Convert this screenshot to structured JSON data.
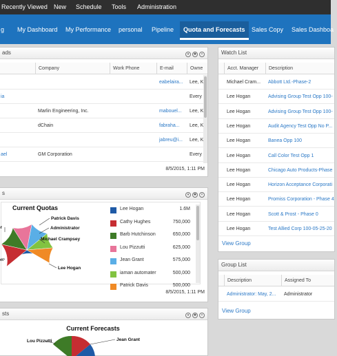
{
  "topnav": {
    "items": [
      "Recently Viewed",
      "New",
      "Schedule",
      "Tools",
      "Administration"
    ]
  },
  "tabs": {
    "items": [
      "g",
      "My Dashboard",
      "My Performance",
      "personal",
      "Pipeline",
      "Quota and Forecasts",
      "Sales Copy",
      "Sales Dashboa"
    ],
    "active": 5
  },
  "leads_panel": {
    "title": "ads",
    "headers": [
      "Company",
      "Work Phone",
      "E-mail",
      "Owne"
    ],
    "rows": [
      {
        "name": "",
        "company": "",
        "phone": "",
        "email": "eabelaira...",
        "owner": "Lee, K"
      },
      {
        "name": "ia",
        "company": "",
        "phone": "",
        "email": "",
        "owner": "Every"
      },
      {
        "name": "",
        "company": "Marlin Engineering, Inc.",
        "phone": "",
        "email": "mabouel...",
        "owner": "Lee, K"
      },
      {
        "name": "",
        "company": "dChain",
        "phone": "",
        "email": "fabraha...",
        "owner": "Lee, K"
      },
      {
        "name": "",
        "company": "",
        "phone": "",
        "email": "jabreu@i...",
        "owner": "Lee, K"
      },
      {
        "name": "ael",
        "company": "GM Corporation",
        "phone": "",
        "email": "",
        "owner": "Every"
      }
    ],
    "footer": "8/5/2015, 1:11 PM"
  },
  "quotas_panel": {
    "title": "s",
    "footer": "8/5/2015, 1:11 PM",
    "chart_data": {
      "type": "pie",
      "title": "Current Quotas",
      "slices": [
        {
          "name": "Lee Hogan",
          "value": 1600000,
          "value_label": "1.6M",
          "color": "#1f5aa6"
        },
        {
          "name": "Cathy Hughes",
          "value": 750000,
          "value_label": "750,000",
          "color": "#c62d32"
        },
        {
          "name": "Barb Hutchinson",
          "value": 650000,
          "value_label": "650,000",
          "color": "#3e7b27"
        },
        {
          "name": "Lou Pizzutti",
          "value": 625000,
          "value_label": "625,000",
          "color": "#e8759a"
        },
        {
          "name": "Jean Grant",
          "value": 575000,
          "value_label": "575,000",
          "color": "#5aaee6"
        },
        {
          "name": "iaman automater",
          "value": 500000,
          "value_label": "500,000",
          "color": "#82c341"
        },
        {
          "name": "Patrick Davis",
          "value": 500000,
          "value_label": "500,000",
          "color": "#f08a25"
        }
      ],
      "callouts": [
        "Patrick Davis",
        "Administrator",
        "Michael Crampsey",
        "Lee Hogan",
        "er",
        "on"
      ]
    }
  },
  "forecasts_panel": {
    "title": "sts",
    "chart_data": {
      "type": "pie",
      "title": "Current Forecasts",
      "callouts": [
        "Lou Pizzutti",
        "Jean Grant"
      ]
    }
  },
  "watch_panel": {
    "title": "Watch List",
    "headers": [
      "Acct. Manager",
      "Description"
    ],
    "rows": [
      {
        "manager": "Michael Cram...",
        "desc": "Abbott Ltd.-Phase-2"
      },
      {
        "manager": "Lee Hogan",
        "desc": "Advising Group Test Opp 100-"
      },
      {
        "manager": "Lee Hogan",
        "desc": "Advising Group Test Opp 100-"
      },
      {
        "manager": "Lee Hogan",
        "desc": "Audit Agency Test Opp No P..."
      },
      {
        "manager": "Lee Hogan",
        "desc": "Banea Opp 100"
      },
      {
        "manager": "Lee Hogan",
        "desc": "Call Color Test Opp 1"
      },
      {
        "manager": "Lee Hogan",
        "desc": "Chicago Auto Products-Phase"
      },
      {
        "manager": "Lee Hogan",
        "desc": "Horizon Acceptance Corporati"
      },
      {
        "manager": "Lee Hogan",
        "desc": "Promiss Corporation - Phase 4"
      },
      {
        "manager": "Lee Hogan",
        "desc": "Scott & Prost - Phase 0"
      },
      {
        "manager": "Lee Hogan",
        "desc": "Test Allied Corp 100-05-25-20"
      }
    ],
    "view_link": "View Group"
  },
  "group_panel": {
    "title": "Group List",
    "headers": [
      "Description",
      "Assigned To"
    ],
    "rows": [
      {
        "desc": "Administrator: May, 2...",
        "assigned": "Administrator"
      }
    ],
    "view_link": "View Group"
  }
}
